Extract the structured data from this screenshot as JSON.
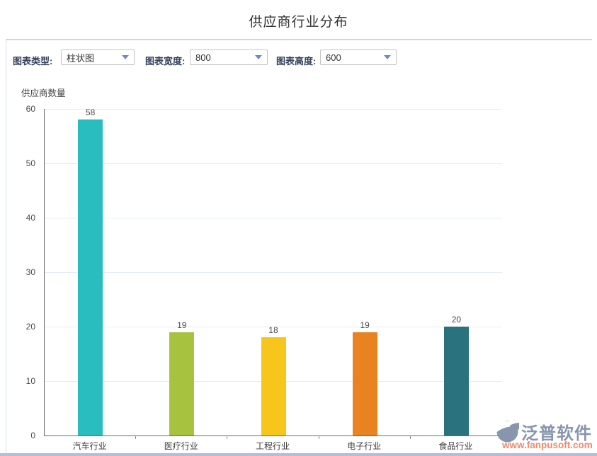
{
  "page": {
    "title": "供应商行业分布"
  },
  "controls": {
    "chart_type": {
      "label": "图表类型:",
      "value": "柱状图"
    },
    "chart_width": {
      "label": "图表宽度:",
      "value": "800"
    },
    "chart_height": {
      "label": "图表高度:",
      "value": "600"
    }
  },
  "chart_data": {
    "type": "bar",
    "title": "供应商行业分布",
    "ylabel": "供应商数量",
    "xlabel": "",
    "categories": [
      "汽车行业",
      "医疗行业",
      "工程行业",
      "电子行业",
      "食品行业"
    ],
    "values": [
      58,
      19,
      18,
      19,
      20
    ],
    "bar_colors": [
      "#2abdbf",
      "#a6c23e",
      "#f8c51c",
      "#e8831f",
      "#29727e"
    ],
    "ylim": [
      0,
      60
    ],
    "ytick_step": 10,
    "grid": "horizontal",
    "legend": "none"
  },
  "watermark": {
    "brand": "泛普软件",
    "url": "www.fanpusoft.com",
    "brand_color": "#8795ad",
    "url_color": "#f18a6d"
  }
}
